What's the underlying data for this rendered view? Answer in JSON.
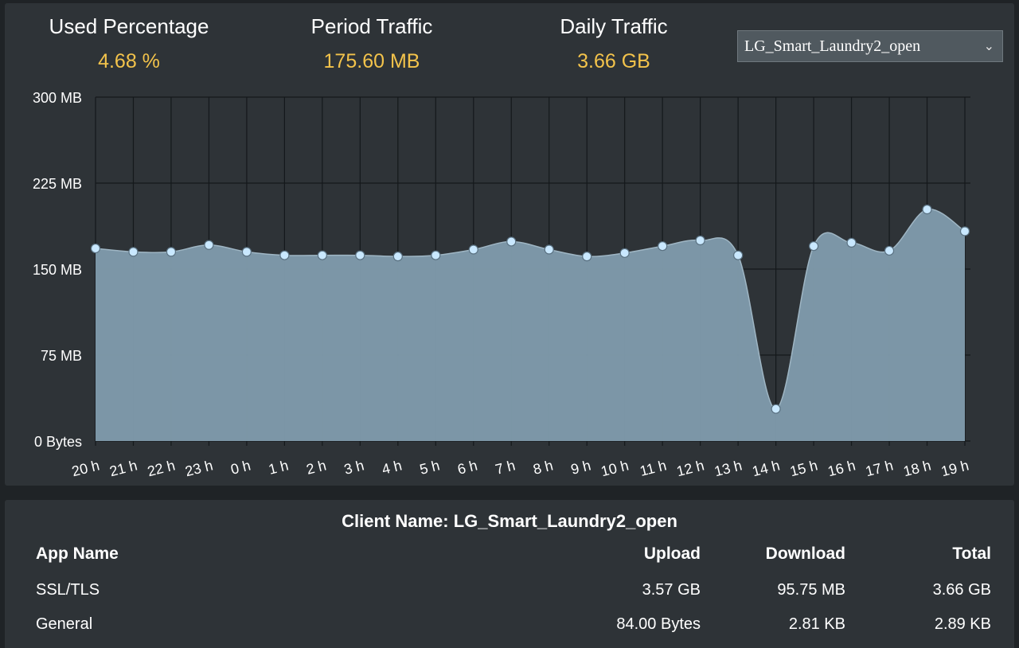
{
  "stats": {
    "used_percentage": {
      "label": "Used Percentage",
      "value": "4.68 %"
    },
    "period_traffic": {
      "label": "Period Traffic",
      "value": "175.60 MB"
    },
    "daily_traffic": {
      "label": "Daily Traffic",
      "value": "3.66 GB"
    }
  },
  "client_select": {
    "selected": "LG_Smart_Laundry2_open",
    "icon": "chevron-down-icon"
  },
  "colors": {
    "background": "#1f2326",
    "panel": "#2e3337",
    "accent_value": "#f3c34b",
    "area_fill": "#7f9aab",
    "point_fill": "#c9e8ff"
  },
  "chart_data": {
    "type": "area",
    "x": [
      "20 h",
      "21 h",
      "22 h",
      "23 h",
      "0 h",
      "1 h",
      "2 h",
      "3 h",
      "4 h",
      "5 h",
      "6 h",
      "7 h",
      "8 h",
      "9 h",
      "10 h",
      "11 h",
      "12 h",
      "13 h",
      "14 h",
      "15 h",
      "16 h",
      "17 h",
      "18 h",
      "19 h"
    ],
    "values": [
      168,
      165,
      165,
      171,
      165,
      162,
      162,
      162,
      161,
      162,
      167,
      174,
      167,
      161,
      164,
      170,
      175,
      162,
      28,
      170,
      173,
      166,
      202,
      183
    ],
    "unit": "MB",
    "yticks": [
      "0 Bytes",
      "75 MB",
      "150 MB",
      "225 MB",
      "300 MB"
    ],
    "ylim": [
      0,
      300
    ],
    "grid": true
  },
  "table": {
    "client_label": "Client Name: LG_Smart_Laundry2_open",
    "headers": [
      "App Name",
      "Upload",
      "Download",
      "Total"
    ],
    "rows": [
      [
        "SSL/TLS",
        "3.57 GB",
        "95.75 MB",
        "3.66 GB"
      ],
      [
        "General",
        "84.00 Bytes",
        "2.81 KB",
        "2.89 KB"
      ]
    ]
  }
}
